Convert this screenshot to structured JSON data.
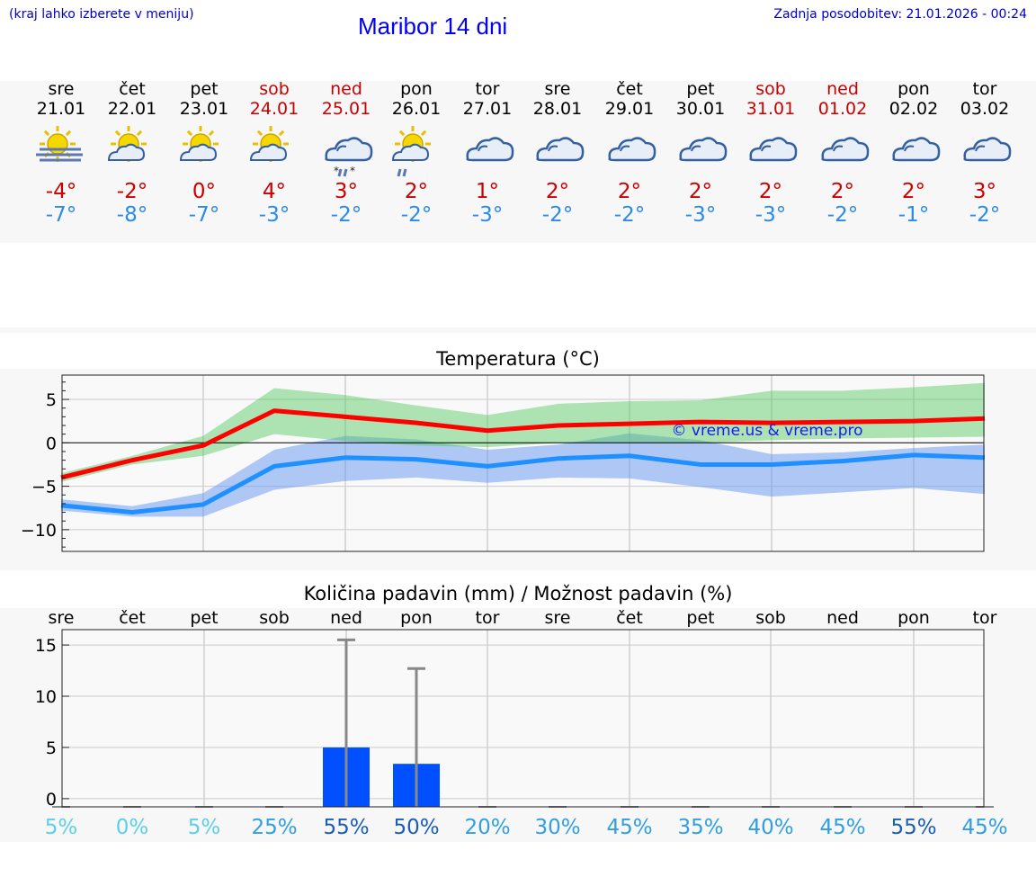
{
  "header": {
    "hint": "(kraj lahko izberete v meniju)",
    "title": "Maribor 14 dni",
    "updated": "Zadnja posodobitev: 21.01.2026 - 00:24"
  },
  "colors": {
    "max": "#cc0000",
    "min": "#2a8be8",
    "link": "#0000ee",
    "bar": "#0050ff"
  },
  "days": [
    {
      "name": "sre",
      "date": "21.01",
      "weekend": false,
      "icon": "sun-fog-icon",
      "tmax": "-4°",
      "tmin": "-7°"
    },
    {
      "name": "čet",
      "date": "22.01",
      "weekend": false,
      "icon": "sun-cloud-icon",
      "tmax": "-2°",
      "tmin": "-8°"
    },
    {
      "name": "pet",
      "date": "23.01",
      "weekend": false,
      "icon": "sun-cloud-icon",
      "tmax": "0°",
      "tmin": "-7°"
    },
    {
      "name": "sob",
      "date": "24.01",
      "weekend": true,
      "icon": "sun-cloud-icon",
      "tmax": "4°",
      "tmin": "-3°"
    },
    {
      "name": "ned",
      "date": "25.01",
      "weekend": true,
      "icon": "cloud-sleet-icon",
      "tmax": "3°",
      "tmin": "-2°"
    },
    {
      "name": "pon",
      "date": "26.01",
      "weekend": false,
      "icon": "sun-cloud-rain-icon",
      "tmax": "2°",
      "tmin": "-2°"
    },
    {
      "name": "tor",
      "date": "27.01",
      "weekend": false,
      "icon": "cloud-icon",
      "tmax": "1°",
      "tmin": "-3°"
    },
    {
      "name": "sre",
      "date": "28.01",
      "weekend": false,
      "icon": "cloud-icon",
      "tmax": "2°",
      "tmin": "-2°"
    },
    {
      "name": "čet",
      "date": "29.01",
      "weekend": false,
      "icon": "cloud-icon",
      "tmax": "2°",
      "tmin": "-2°"
    },
    {
      "name": "pet",
      "date": "30.01",
      "weekend": false,
      "icon": "cloud-icon",
      "tmax": "2°",
      "tmin": "-3°"
    },
    {
      "name": "sob",
      "date": "31.01",
      "weekend": true,
      "icon": "cloud-icon",
      "tmax": "2°",
      "tmin": "-3°"
    },
    {
      "name": "ned",
      "date": "01.02",
      "weekend": true,
      "icon": "cloud-icon",
      "tmax": "2°",
      "tmin": "-2°"
    },
    {
      "name": "pon",
      "date": "02.02",
      "weekend": false,
      "icon": "cloud-icon",
      "tmax": "2°",
      "tmin": "-1°"
    },
    {
      "name": "tor",
      "date": "03.02",
      "weekend": false,
      "icon": "cloud-icon",
      "tmax": "3°",
      "tmin": "-2°"
    }
  ],
  "chart_data": [
    {
      "type": "line",
      "title": "Temperatura (°C)",
      "watermark": "© vreme.us & vreme.pro",
      "x": [
        0,
        1,
        2,
        3,
        4,
        5,
        6,
        7,
        8,
        9,
        10,
        11,
        12,
        13
      ],
      "ylim": [
        -12.5,
        7.8
      ],
      "yticks": [
        5,
        0,
        -5,
        -10
      ],
      "ytick_labels": [
        "5",
        "0",
        "−5",
        "−10"
      ],
      "series": [
        {
          "name": "max",
          "values": [
            -4,
            -2,
            -0.3,
            3.7,
            3,
            2.3,
            1.4,
            2,
            2.2,
            2.4,
            2.3,
            2.4,
            2.5,
            2.8
          ],
          "band_upper": [
            -3.5,
            -1.5,
            0.8,
            6.3,
            5.5,
            4.3,
            3.2,
            4.5,
            4.8,
            4.9,
            6,
            6,
            6.4,
            6.9
          ],
          "band_lower": [
            -4.5,
            -2.5,
            -1.5,
            1,
            0.2,
            -0.3,
            -0.5,
            0,
            0,
            0,
            0.3,
            0.5,
            0.6,
            0.7
          ]
        },
        {
          "name": "min",
          "values": [
            -7.2,
            -8,
            -7.1,
            -2.7,
            -1.7,
            -1.9,
            -2.7,
            -1.8,
            -1.5,
            -2.5,
            -2.5,
            -2.1,
            -1.4,
            -1.7
          ],
          "band_upper": [
            -6.5,
            -7.3,
            -5.8,
            -0.8,
            0.8,
            0.4,
            -0.8,
            -0.2,
            1.1,
            0.3,
            -1.3,
            -1.1,
            -0.6,
            -0.2
          ],
          "band_lower": [
            -7.8,
            -8.5,
            -8.5,
            -5.4,
            -4.4,
            -4,
            -4.6,
            -4,
            -4.1,
            -5.1,
            -6.2,
            -5.7,
            -5.2,
            -5.9
          ]
        }
      ]
    },
    {
      "type": "bar",
      "title": "Količina padavin (mm) / Možnost padavin (%)",
      "categories": [
        "sre",
        "čet",
        "pet",
        "sob",
        "ned",
        "pon",
        "tor",
        "sre",
        "čet",
        "pet",
        "sob",
        "ned",
        "pon",
        "tor"
      ],
      "values": [
        0,
        0,
        0,
        0,
        5,
        3.4,
        0,
        0,
        0,
        0,
        0,
        0,
        0,
        0
      ],
      "max_values": [
        0,
        0,
        0,
        0,
        15.5,
        12.7,
        0,
        0,
        0,
        0,
        0,
        0,
        0,
        0
      ],
      "probability": [
        "5%",
        "0%",
        "5%",
        "25%",
        "55%",
        "50%",
        "20%",
        "30%",
        "45%",
        "35%",
        "40%",
        "45%",
        "55%",
        "45%"
      ],
      "probability_values": [
        5,
        0,
        5,
        25,
        55,
        50,
        20,
        30,
        45,
        35,
        40,
        45,
        55,
        45
      ],
      "ylim": [
        -0.8,
        16.5
      ],
      "yticks": [
        15,
        10,
        5,
        0
      ],
      "ytick_labels": [
        "15",
        "10",
        "5",
        "0"
      ]
    }
  ]
}
